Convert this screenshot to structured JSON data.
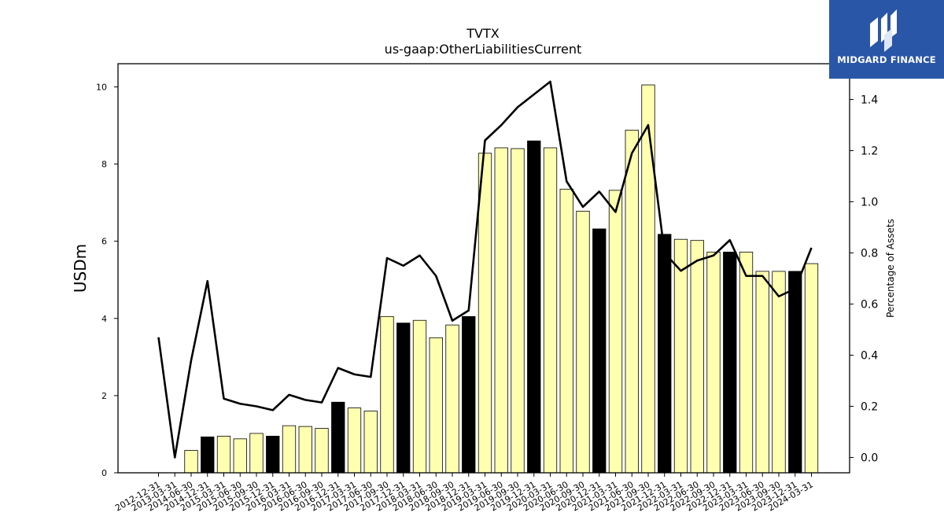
{
  "chart_data": {
    "type": "bar",
    "title": "TVTX",
    "subtitle": "us-gaap:OtherLiabilitiesCurrent",
    "ylabel": "USDm",
    "y2label": "Percentage of Assets",
    "ylim": [
      0,
      10.6
    ],
    "y2lim": [
      -0.06,
      1.54
    ],
    "yticks": [
      "0",
      "2",
      "4",
      "6",
      "8",
      "10"
    ],
    "y2ticks": [
      "0.0",
      "0.2",
      "0.4",
      "0.6",
      "0.8",
      "1.0",
      "1.2",
      "1.4"
    ],
    "categories": [
      "2012-12-31",
      "2013-03-31",
      "2014-06-30",
      "2014-12-31",
      "2015-03-31",
      "2015-06-30",
      "2015-09-30",
      "2015-12-31",
      "2016-03-31",
      "2016-06-30",
      "2016-09-30",
      "2016-12-31",
      "2017-03-31",
      "2017-06-30",
      "2017-09-30",
      "2017-12-31",
      "2018-03-31",
      "2018-06-30",
      "2018-09-30",
      "2018-12-31",
      "2019-03-31",
      "2019-06-30",
      "2019-09-30",
      "2019-12-31",
      "2020-03-31",
      "2020-06-30",
      "2020-09-30",
      "2020-12-31",
      "2021-03-31",
      "2021-06-30",
      "2021-09-30",
      "2021-12-31",
      "2022-03-31",
      "2022-06-30",
      "2022-09-30",
      "2022-12-31",
      "2023-03-31",
      "2023-06-30",
      "2023-09-30",
      "2023-12-31",
      "2024-03-31"
    ],
    "series": [
      {
        "kind": "bar",
        "values": [
          0,
          0,
          0.58,
          0.93,
          0.95,
          0.88,
          1.02,
          0.95,
          1.22,
          1.2,
          1.15,
          1.83,
          1.68,
          1.6,
          4.05,
          3.88,
          3.95,
          3.5,
          3.83,
          4.05,
          8.28,
          8.42,
          8.4,
          8.6,
          8.42,
          7.35,
          6.78,
          6.32,
          7.32,
          8.88,
          10.05,
          6.18,
          6.05,
          6.02,
          5.72,
          5.72,
          5.72,
          5.22,
          5.22,
          5.22,
          5.42
        ],
        "year_end": [
          false,
          false,
          false,
          true,
          false,
          false,
          false,
          true,
          false,
          false,
          false,
          true,
          false,
          false,
          false,
          true,
          false,
          false,
          false,
          true,
          false,
          false,
          false,
          true,
          false,
          false,
          false,
          true,
          false,
          false,
          false,
          true,
          false,
          false,
          false,
          true,
          false,
          false,
          false,
          true,
          false
        ]
      },
      {
        "kind": "line",
        "axis": "right",
        "values": [
          0.47,
          0.0,
          0.38,
          0.69,
          0.23,
          0.21,
          0.2,
          0.185,
          0.245,
          0.225,
          0.215,
          0.35,
          0.325,
          0.315,
          0.78,
          0.75,
          0.79,
          0.71,
          0.535,
          0.575,
          1.24,
          1.3,
          1.37,
          1.42,
          1.47,
          1.08,
          0.98,
          1.04,
          0.96,
          1.19,
          1.3,
          0.8,
          0.73,
          0.77,
          0.79,
          0.85,
          0.71,
          0.71,
          0.63,
          0.66,
          0.82
        ]
      }
    ],
    "colors": {
      "bar_fill": "#ffffb0",
      "bar_highlight": "#000000",
      "bar_edge": "#000000",
      "line": "#000000"
    }
  },
  "logo": {
    "text": "MIDGARD FINANCE",
    "background": "#2a56a8"
  }
}
